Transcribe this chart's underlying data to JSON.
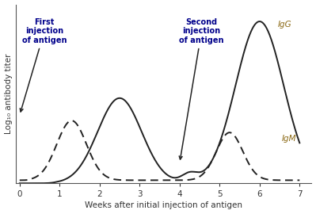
{
  "xlabel": "Weeks after initial injection of antigen",
  "ylabel": "Log₁₀ antibody titer",
  "xlim": [
    -0.1,
    7.3
  ],
  "ylim": [
    0,
    1.05
  ],
  "xticks": [
    0,
    1,
    2,
    3,
    4,
    5,
    6,
    7
  ],
  "annotation1_text": "First\ninjection\nof antigen",
  "annotation2_text": "Second\ninjection\nof antigen",
  "annotation_color": "#00008B",
  "label_color": "#8B6914",
  "line_color": "#222222",
  "background_color": "#ffffff",
  "IgG_label": "IgG",
  "IgM_label": "IgM",
  "figsize": [
    3.99,
    2.7
  ],
  "dpi": 100
}
